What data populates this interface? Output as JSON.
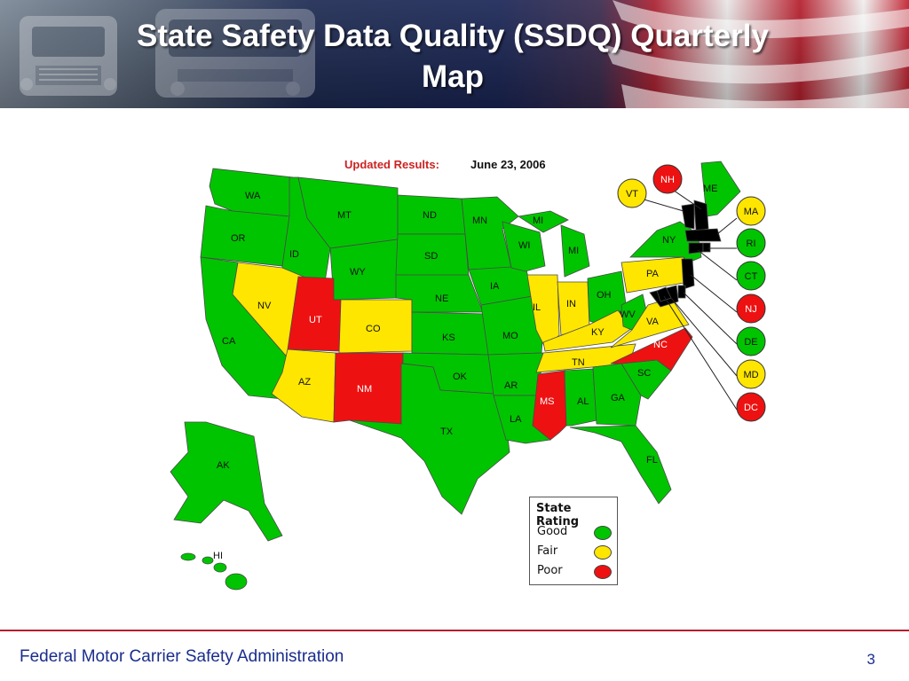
{
  "slide": {
    "title_line1": "State Safety Data Quality (SSDQ) Quarterly",
    "title_line2": "Map",
    "footer": "Federal Motor Carrier Safety Administration",
    "page_number": "3"
  },
  "map": {
    "updated_label": "Updated Results:",
    "updated_date": "June 23, 2006",
    "rating_colors": {
      "Good": "#00c400",
      "Fair": "#ffe600",
      "Poor": "#ee1111"
    },
    "states": {
      "WA": "Good",
      "OR": "Good",
      "CA": "Good",
      "ID": "Good",
      "NV": "Fair",
      "MT": "Good",
      "WY": "Good",
      "UT": "Poor",
      "CO": "Fair",
      "AZ": "Fair",
      "NM": "Poor",
      "ND": "Good",
      "SD": "Good",
      "NE": "Good",
      "KS": "Good",
      "OK": "Good",
      "TX": "Good",
      "MN": "Good",
      "IA": "Good",
      "MO": "Good",
      "AR": "Good",
      "LA": "Good",
      "WI": "Good",
      "MI": "Good",
      "IL": "Fair",
      "IN": "Fair",
      "OH": "Good",
      "KY": "Fair",
      "TN": "Fair",
      "MS": "Poor",
      "AL": "Good",
      "GA": "Good",
      "FL": "Good",
      "SC": "Good",
      "NC": "Poor",
      "VA": "Fair",
      "WV": "Good",
      "PA": "Fair",
      "NY": "Good",
      "ME": "Good",
      "AK": "Good",
      "HI": "Good"
    },
    "callouts": [
      {
        "abbr": "NH",
        "rating": "Poor"
      },
      {
        "abbr": "VT",
        "rating": "Fair"
      },
      {
        "abbr": "MA",
        "rating": "Fair"
      },
      {
        "abbr": "RI",
        "rating": "Good"
      },
      {
        "abbr": "CT",
        "rating": "Good"
      },
      {
        "abbr": "NJ",
        "rating": "Poor"
      },
      {
        "abbr": "DE",
        "rating": "Good"
      },
      {
        "abbr": "MD",
        "rating": "Fair"
      },
      {
        "abbr": "DC",
        "rating": "Poor"
      }
    ]
  },
  "legend": {
    "title": "State Rating",
    "items": [
      {
        "label": "Good",
        "rating": "Good"
      },
      {
        "label": "Fair",
        "rating": "Fair"
      },
      {
        "label": "Poor",
        "rating": "Poor"
      }
    ]
  }
}
